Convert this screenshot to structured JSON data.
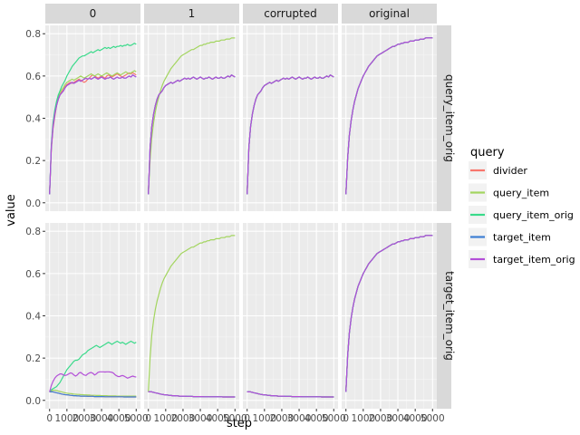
{
  "chart_data": {
    "type": "line",
    "xlabel": "step",
    "ylabel": "value",
    "xlim": [
      0,
      5000
    ],
    "ylim": [
      0,
      0.8
    ],
    "x_ticks": [
      0,
      1000,
      2000,
      3000,
      4000,
      5000
    ],
    "x_tick_labels": [
      "0",
      "1000",
      "2000",
      "3000",
      "4000",
      "5000"
    ],
    "y_ticks": [
      0.0,
      0.2,
      0.4,
      0.6,
      0.8
    ],
    "y_tick_labels": [
      "0.0",
      "0.2",
      "0.4",
      "0.6",
      "0.8"
    ],
    "col_facets": [
      "0",
      "1",
      "corrupted",
      "original"
    ],
    "row_facets": [
      "query_item_orig",
      "target_item_orig"
    ],
    "legend": {
      "title": "query",
      "entries": [
        {
          "name": "divider",
          "color": "#F8766D"
        },
        {
          "name": "query_item",
          "color": "#A3D55F"
        },
        {
          "name": "query_item_orig",
          "color": "#39DA8A"
        },
        {
          "name": "target_item",
          "color": "#3D7FD4"
        },
        {
          "name": "target_item_orig",
          "color": "#B34FD8"
        }
      ]
    },
    "x": [
      0,
      100,
      200,
      300,
      400,
      500,
      600,
      700,
      800,
      900,
      1000,
      1100,
      1200,
      1300,
      1400,
      1500,
      1600,
      1700,
      1800,
      1900,
      2000,
      2100,
      2200,
      2300,
      2400,
      2500,
      2600,
      2700,
      2800,
      2900,
      3000,
      3100,
      3200,
      3300,
      3400,
      3500,
      3600,
      3700,
      3800,
      3900,
      4000,
      4100,
      4200,
      4300,
      4400,
      4500,
      4600,
      4700,
      4800,
      4900,
      5000
    ],
    "curves": {
      "fast": [
        0.04,
        0.26,
        0.36,
        0.42,
        0.46,
        0.49,
        0.51,
        0.52,
        0.53,
        0.545,
        0.555,
        0.56,
        0.565,
        0.57,
        0.565,
        0.57,
        0.575,
        0.58,
        0.575,
        0.58,
        0.585,
        0.59,
        0.585,
        0.59,
        0.585,
        0.59,
        0.595,
        0.59,
        0.585,
        0.59,
        0.595,
        0.59,
        0.585,
        0.59,
        0.59,
        0.595,
        0.59,
        0.585,
        0.59,
        0.595,
        0.59,
        0.59,
        0.595,
        0.59,
        0.59,
        0.595,
        0.6,
        0.595,
        0.605,
        0.6,
        0.595
      ],
      "q0_divider": [
        0.04,
        0.25,
        0.35,
        0.41,
        0.46,
        0.49,
        0.51,
        0.525,
        0.535,
        0.55,
        0.56,
        0.565,
        0.57,
        0.565,
        0.57,
        0.575,
        0.58,
        0.585,
        0.58,
        0.575,
        0.57,
        0.575,
        0.585,
        0.59,
        0.6,
        0.605,
        0.6,
        0.595,
        0.59,
        0.595,
        0.6,
        0.595,
        0.59,
        0.6,
        0.605,
        0.6,
        0.595,
        0.6,
        0.605,
        0.61,
        0.605,
        0.6,
        0.595,
        0.6,
        0.605,
        0.61,
        0.615,
        0.61,
        0.615,
        0.61,
        0.605
      ],
      "q0_query_item": [
        0.04,
        0.26,
        0.37,
        0.43,
        0.47,
        0.5,
        0.52,
        0.535,
        0.545,
        0.56,
        0.57,
        0.575,
        0.58,
        0.585,
        0.58,
        0.585,
        0.59,
        0.595,
        0.6,
        0.595,
        0.59,
        0.595,
        0.6,
        0.605,
        0.61,
        0.605,
        0.6,
        0.605,
        0.61,
        0.605,
        0.6,
        0.605,
        0.61,
        0.615,
        0.61,
        0.605,
        0.6,
        0.605,
        0.61,
        0.615,
        0.61,
        0.605,
        0.61,
        0.615,
        0.62,
        0.615,
        0.61,
        0.615,
        0.62,
        0.625,
        0.62
      ],
      "q0_query_item_orig": [
        0.04,
        0.27,
        0.38,
        0.44,
        0.48,
        0.51,
        0.53,
        0.55,
        0.565,
        0.58,
        0.6,
        0.615,
        0.63,
        0.645,
        0.655,
        0.665,
        0.675,
        0.685,
        0.69,
        0.695,
        0.695,
        0.7,
        0.705,
        0.71,
        0.715,
        0.71,
        0.715,
        0.72,
        0.725,
        0.72,
        0.725,
        0.73,
        0.735,
        0.73,
        0.735,
        0.73,
        0.735,
        0.74,
        0.735,
        0.74,
        0.74,
        0.745,
        0.74,
        0.745,
        0.745,
        0.75,
        0.745,
        0.745,
        0.75,
        0.755,
        0.75
      ],
      "slow": [
        0.04,
        0.2,
        0.31,
        0.38,
        0.43,
        0.47,
        0.5,
        0.53,
        0.555,
        0.575,
        0.59,
        0.605,
        0.62,
        0.635,
        0.645,
        0.655,
        0.665,
        0.675,
        0.685,
        0.695,
        0.7,
        0.705,
        0.71,
        0.715,
        0.72,
        0.725,
        0.725,
        0.73,
        0.735,
        0.74,
        0.745,
        0.745,
        0.75,
        0.75,
        0.755,
        0.755,
        0.76,
        0.76,
        0.76,
        0.765,
        0.765,
        0.765,
        0.77,
        0.77,
        0.77,
        0.775,
        0.775,
        0.775,
        0.78,
        0.78,
        0.78
      ],
      "orig": [
        0.04,
        0.21,
        0.32,
        0.39,
        0.44,
        0.48,
        0.51,
        0.54,
        0.56,
        0.58,
        0.6,
        0.615,
        0.63,
        0.645,
        0.655,
        0.665,
        0.675,
        0.685,
        0.695,
        0.7,
        0.705,
        0.71,
        0.715,
        0.72,
        0.725,
        0.73,
        0.735,
        0.74,
        0.74,
        0.745,
        0.75,
        0.75,
        0.755,
        0.755,
        0.76,
        0.76,
        0.76,
        0.765,
        0.765,
        0.765,
        0.77,
        0.77,
        0.77,
        0.775,
        0.775,
        0.775,
        0.78,
        0.78,
        0.78,
        0.78,
        0.78
      ],
      "low": [
        0.04,
        0.04,
        0.04,
        0.038,
        0.036,
        0.034,
        0.032,
        0.03,
        0.028,
        0.027,
        0.026,
        0.025,
        0.024,
        0.023,
        0.022,
        0.022,
        0.021,
        0.021,
        0.02,
        0.02,
        0.02,
        0.02,
        0.019,
        0.019,
        0.019,
        0.019,
        0.018,
        0.018,
        0.018,
        0.018,
        0.018,
        0.018,
        0.017,
        0.017,
        0.017,
        0.017,
        0.017,
        0.017,
        0.017,
        0.017,
        0.017,
        0.017,
        0.017,
        0.016,
        0.016,
        0.016,
        0.016,
        0.016,
        0.016,
        0.016,
        0.016
      ],
      "t0_query_item": [
        0.04,
        0.045,
        0.048,
        0.048,
        0.046,
        0.044,
        0.042,
        0.04,
        0.038,
        0.036,
        0.034,
        0.033,
        0.032,
        0.031,
        0.03,
        0.029,
        0.028,
        0.028,
        0.027,
        0.027,
        0.026,
        0.026,
        0.025,
        0.025,
        0.024,
        0.024,
        0.024,
        0.023,
        0.023,
        0.023,
        0.022,
        0.022,
        0.022,
        0.022,
        0.021,
        0.021,
        0.021,
        0.021,
        0.021,
        0.02,
        0.02,
        0.02,
        0.02,
        0.02,
        0.02,
        0.02,
        0.02,
        0.02,
        0.02,
        0.02,
        0.02
      ],
      "t0_query_item_orig": [
        0.04,
        0.05,
        0.055,
        0.06,
        0.065,
        0.075,
        0.085,
        0.1,
        0.115,
        0.13,
        0.145,
        0.155,
        0.165,
        0.175,
        0.185,
        0.19,
        0.19,
        0.195,
        0.205,
        0.215,
        0.22,
        0.225,
        0.235,
        0.24,
        0.245,
        0.25,
        0.255,
        0.26,
        0.255,
        0.25,
        0.255,
        0.26,
        0.265,
        0.27,
        0.275,
        0.27,
        0.265,
        0.27,
        0.275,
        0.28,
        0.275,
        0.27,
        0.275,
        0.27,
        0.265,
        0.27,
        0.275,
        0.28,
        0.275,
        0.27,
        0.275
      ],
      "t0_target_item_orig": [
        0.04,
        0.07,
        0.09,
        0.105,
        0.115,
        0.12,
        0.125,
        0.125,
        0.12,
        0.118,
        0.12,
        0.125,
        0.13,
        0.128,
        0.12,
        0.115,
        0.12,
        0.13,
        0.132,
        0.125,
        0.12,
        0.118,
        0.125,
        0.13,
        0.132,
        0.128,
        0.12,
        0.125,
        0.133,
        0.135,
        0.135,
        0.135,
        0.134,
        0.135,
        0.135,
        0.134,
        0.133,
        0.128,
        0.12,
        0.115,
        0.112,
        0.115,
        0.118,
        0.115,
        0.11,
        0.105,
        0.108,
        0.112,
        0.115,
        0.112,
        0.11
      ]
    },
    "panels": [
      {
        "row": 0,
        "col": 0,
        "series": [
          {
            "name": "divider",
            "curve": "q0_divider"
          },
          {
            "name": "query_item",
            "curve": "q0_query_item"
          },
          {
            "name": "query_item_orig",
            "curve": "q0_query_item_orig"
          },
          {
            "name": "target_item",
            "curve": "fast"
          },
          {
            "name": "target_item_orig",
            "curve": "fast"
          }
        ]
      },
      {
        "row": 0,
        "col": 1,
        "series": [
          {
            "name": "query_item",
            "curve": "slow"
          },
          {
            "name": "divider",
            "curve": "fast"
          },
          {
            "name": "query_item_orig",
            "curve": "fast"
          },
          {
            "name": "target_item",
            "curve": "fast"
          },
          {
            "name": "target_item_orig",
            "curve": "fast"
          }
        ]
      },
      {
        "row": 0,
        "col": 2,
        "series": [
          {
            "name": "divider",
            "curve": "fast"
          },
          {
            "name": "query_item",
            "curve": "fast"
          },
          {
            "name": "query_item_orig",
            "curve": "fast"
          },
          {
            "name": "target_item",
            "curve": "fast"
          },
          {
            "name": "target_item_orig",
            "curve": "fast"
          }
        ]
      },
      {
        "row": 0,
        "col": 3,
        "series": [
          {
            "name": "divider",
            "curve": "orig"
          },
          {
            "name": "query_item",
            "curve": "orig"
          },
          {
            "name": "query_item_orig",
            "curve": "orig"
          },
          {
            "name": "target_item",
            "curve": "orig"
          },
          {
            "name": "target_item_orig",
            "curve": "orig"
          }
        ]
      },
      {
        "row": 1,
        "col": 0,
        "series": [
          {
            "name": "query_item",
            "curve": "t0_query_item"
          },
          {
            "name": "query_item_orig",
            "curve": "t0_query_item_orig"
          },
          {
            "name": "divider",
            "curve": "low"
          },
          {
            "name": "target_item",
            "curve": "low"
          },
          {
            "name": "target_item_orig",
            "curve": "t0_target_item_orig"
          }
        ]
      },
      {
        "row": 1,
        "col": 1,
        "series": [
          {
            "name": "query_item",
            "curve": "slow"
          },
          {
            "name": "divider",
            "curve": "low"
          },
          {
            "name": "query_item_orig",
            "curve": "low"
          },
          {
            "name": "target_item",
            "curve": "low"
          },
          {
            "name": "target_item_orig",
            "curve": "low"
          }
        ]
      },
      {
        "row": 1,
        "col": 2,
        "series": [
          {
            "name": "divider",
            "curve": "low"
          },
          {
            "name": "query_item",
            "curve": "low"
          },
          {
            "name": "query_item_orig",
            "curve": "low"
          },
          {
            "name": "target_item",
            "curve": "low"
          },
          {
            "name": "target_item_orig",
            "curve": "low"
          }
        ]
      },
      {
        "row": 1,
        "col": 3,
        "series": [
          {
            "name": "divider",
            "curve": "orig"
          },
          {
            "name": "query_item",
            "curve": "orig"
          },
          {
            "name": "query_item_orig",
            "curve": "orig"
          },
          {
            "name": "target_item",
            "curve": "orig"
          },
          {
            "name": "target_item_orig",
            "curve": "orig"
          }
        ]
      }
    ]
  }
}
